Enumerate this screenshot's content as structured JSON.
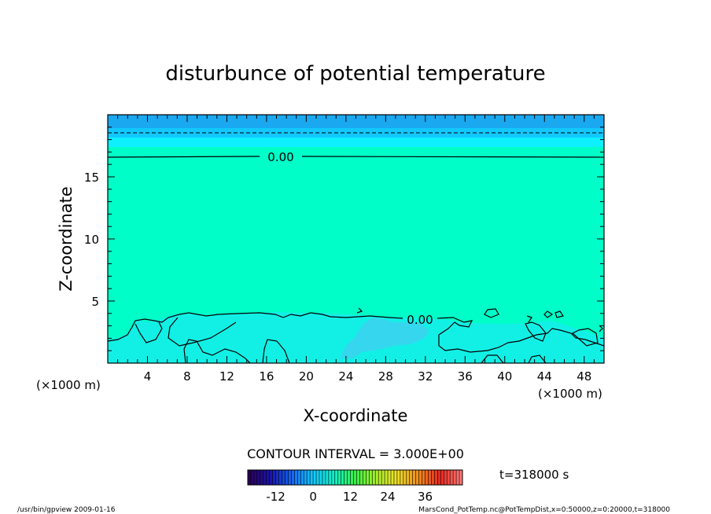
{
  "title": "disturbunce of potential temperature",
  "colors": {
    "top_band": "#1aa8f0",
    "upper_band": "#12c8ff",
    "light_band": "#0ff0ff",
    "main_fill": "#00ffc8",
    "low_fill": "#12f0e6",
    "low_spot": "#40d0f0",
    "contour": "#000000"
  },
  "chart_data": {
    "type": "heatmap",
    "title": "disturbunce of potential temperature",
    "xlabel": "X-coordinate",
    "ylabel": "Z-coordinate",
    "x_unit": "(×1000 m)",
    "y_unit": "(×1000 m)",
    "xlim": [
      0,
      50
    ],
    "ylim": [
      0,
      20
    ],
    "x_ticks": [
      4,
      8,
      12,
      16,
      20,
      24,
      28,
      32,
      36,
      40,
      44,
      48
    ],
    "y_ticks": [
      5,
      10,
      15
    ],
    "contour_labels": [
      {
        "x": 17.7,
        "z": 16.6,
        "text": "0.00"
      },
      {
        "x": 31.0,
        "z": 3.5,
        "text": "0.00"
      }
    ],
    "dashed_contour_z": 18.6,
    "zero_contour_z": 16.6,
    "contour_interval": "CONTOUR INTERVAL = 3.000E+00",
    "colorbar": {
      "ticks": [
        "-12",
        "0",
        "12",
        "24",
        "36"
      ],
      "tick_values": [
        -12,
        0,
        12,
        24,
        36
      ],
      "range": [
        -21,
        48
      ],
      "color_stops": [
        "#2a0058",
        "#1a14a8",
        "#1464f0",
        "#14c8ff",
        "#10f0c8",
        "#38f048",
        "#a8f028",
        "#f0e028",
        "#f08c1c",
        "#e8281c",
        "#ff7878"
      ]
    },
    "time": "t=318000 s"
  },
  "footer": {
    "left": "/usr/bin/gpview   2009-01-16",
    "right": "MarsCond_PotTemp.nc@PotTempDist,x=0:50000,z=0:20000,t=318000"
  }
}
